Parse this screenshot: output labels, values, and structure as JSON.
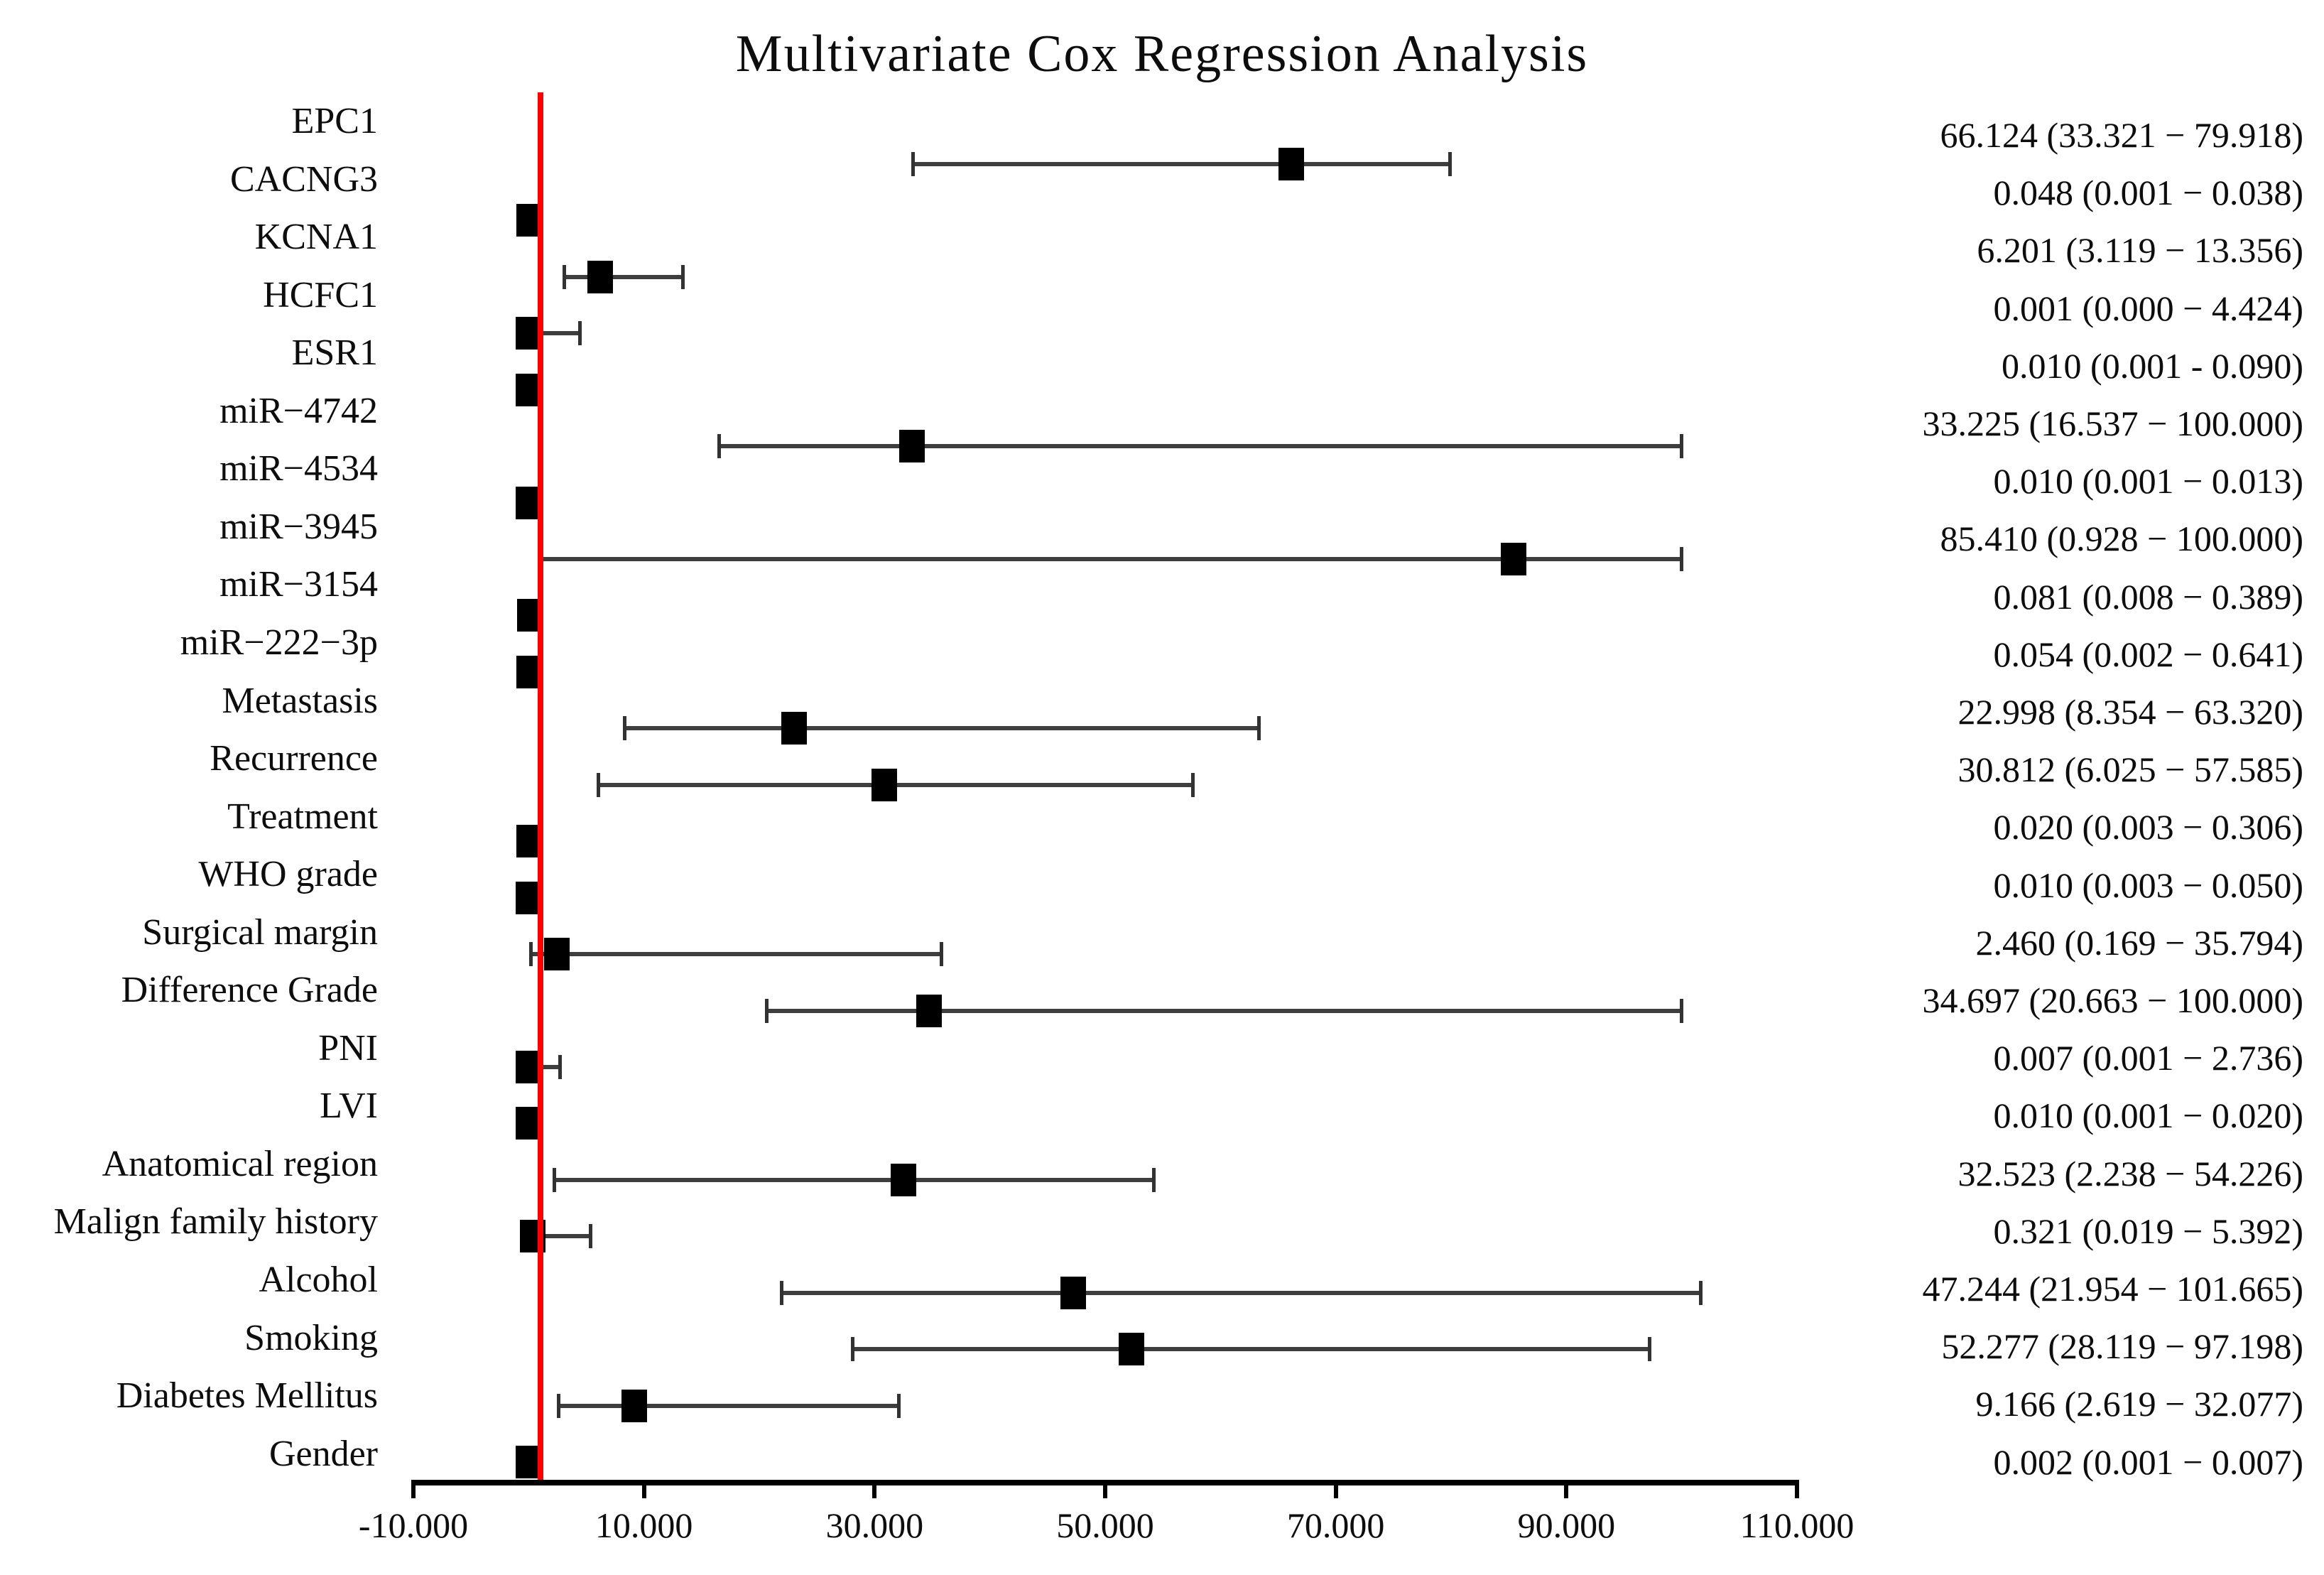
{
  "chart_data": {
    "type": "forest",
    "title": "Multivariate Cox Regression Analysis",
    "legend_position": "none",
    "grid": false,
    "colors": {
      "marker": "#000000",
      "whisker": "#3e3e3e",
      "reference_line": "#ff0000",
      "axis": "#000000",
      "text": "#0d0d0d"
    },
    "x_axis": {
      "min": -10,
      "max": 110,
      "tick_values": [
        -10,
        10,
        30,
        50,
        70,
        90,
        110
      ],
      "tick_labels": [
        "-10.000",
        "10.000",
        "30.000",
        "50.000",
        "70.000",
        "90.000",
        "110.000"
      ]
    },
    "reference_line": {
      "value": 1,
      "color": "#ff0000"
    },
    "rows": [
      {
        "label": "EPC1",
        "hr": 66.124,
        "ci_low": 33.321,
        "ci_high": 79.918,
        "value_text": "66.124 (33.321 − 79.918)"
      },
      {
        "label": "CACNG3",
        "hr": 0.048,
        "ci_low": 0.001,
        "ci_high": 0.038,
        "value_text": "0.048 (0.001 − 0.038)"
      },
      {
        "label": "KCNA1",
        "hr": 6.201,
        "ci_low": 3.119,
        "ci_high": 13.356,
        "value_text": "6.201 (3.119 − 13.356)"
      },
      {
        "label": "HCFC1",
        "hr": 0.001,
        "ci_low": 0.0,
        "ci_high": 4.424,
        "value_text": "0.001 (0.000 − 4.424)"
      },
      {
        "label": "ESR1",
        "hr": 0.01,
        "ci_low": 0.001,
        "ci_high": 0.09,
        "value_text": "0.010 (0.001 - 0.090)"
      },
      {
        "label": "miR−4742",
        "hr": 33.225,
        "ci_low": 16.537,
        "ci_high": 100.0,
        "value_text": "33.225 (16.537 − 100.000)"
      },
      {
        "label": "miR−4534",
        "hr": 0.01,
        "ci_low": 0.001,
        "ci_high": 0.013,
        "value_text": "0.010 (0.001 − 0.013)"
      },
      {
        "label": "miR−3945",
        "hr": 85.41,
        "ci_low": 0.928,
        "ci_high": 100.0,
        "value_text": "85.410 (0.928 − 100.000)"
      },
      {
        "label": "miR−3154",
        "hr": 0.081,
        "ci_low": 0.008,
        "ci_high": 0.389,
        "value_text": "0.081 (0.008 − 0.389)"
      },
      {
        "label": "miR−222−3p",
        "hr": 0.054,
        "ci_low": 0.002,
        "ci_high": 0.641,
        "value_text": "0.054 (0.002 − 0.641)"
      },
      {
        "label": "Metastasis",
        "hr": 22.998,
        "ci_low": 8.354,
        "ci_high": 63.32,
        "value_text": "22.998 (8.354 − 63.320)"
      },
      {
        "label": "Recurrence",
        "hr": 30.812,
        "ci_low": 6.025,
        "ci_high": 57.585,
        "value_text": "30.812 (6.025 − 57.585)"
      },
      {
        "label": "Treatment",
        "hr": 0.02,
        "ci_low": 0.003,
        "ci_high": 0.306,
        "value_text": "0.020 (0.003 − 0.306)"
      },
      {
        "label": "WHO grade",
        "hr": 0.01,
        "ci_low": 0.003,
        "ci_high": 0.05,
        "value_text": "0.010 (0.003 − 0.050)"
      },
      {
        "label": "Surgical margin",
        "hr": 2.46,
        "ci_low": 0.169,
        "ci_high": 35.794,
        "value_text": "2.460 (0.169 − 35.794)"
      },
      {
        "label": "Difference Grade",
        "hr": 34.697,
        "ci_low": 20.663,
        "ci_high": 100.0,
        "value_text": "34.697 (20.663 − 100.000)"
      },
      {
        "label": "PNI",
        "hr": 0.007,
        "ci_low": 0.001,
        "ci_high": 2.736,
        "value_text": "0.007 (0.001 − 2.736)"
      },
      {
        "label": "LVI",
        "hr": 0.01,
        "ci_low": 0.001,
        "ci_high": 0.02,
        "value_text": "0.010 (0.001 − 0.020)"
      },
      {
        "label": "Anatomical region",
        "hr": 32.523,
        "ci_low": 2.238,
        "ci_high": 54.226,
        "value_text": "32.523 (2.238 − 54.226)"
      },
      {
        "label": "Malign family history",
        "hr": 0.321,
        "ci_low": 0.019,
        "ci_high": 5.392,
        "value_text": "0.321 (0.019 − 5.392)"
      },
      {
        "label": "Alcohol",
        "hr": 47.244,
        "ci_low": 21.954,
        "ci_high": 101.665,
        "value_text": "47.244 (21.954 − 101.665)"
      },
      {
        "label": "Smoking",
        "hr": 52.277,
        "ci_low": 28.119,
        "ci_high": 97.198,
        "value_text": "52.277 (28.119 − 97.198)"
      },
      {
        "label": "Diabetes Mellitus",
        "hr": 9.166,
        "ci_low": 2.619,
        "ci_high": 32.077,
        "value_text": "9.166 (2.619 − 32.077)"
      },
      {
        "label": "Gender",
        "hr": 0.002,
        "ci_low": 0.001,
        "ci_high": 0.007,
        "value_text": "0.002 (0.001 − 0.007)"
      }
    ]
  }
}
